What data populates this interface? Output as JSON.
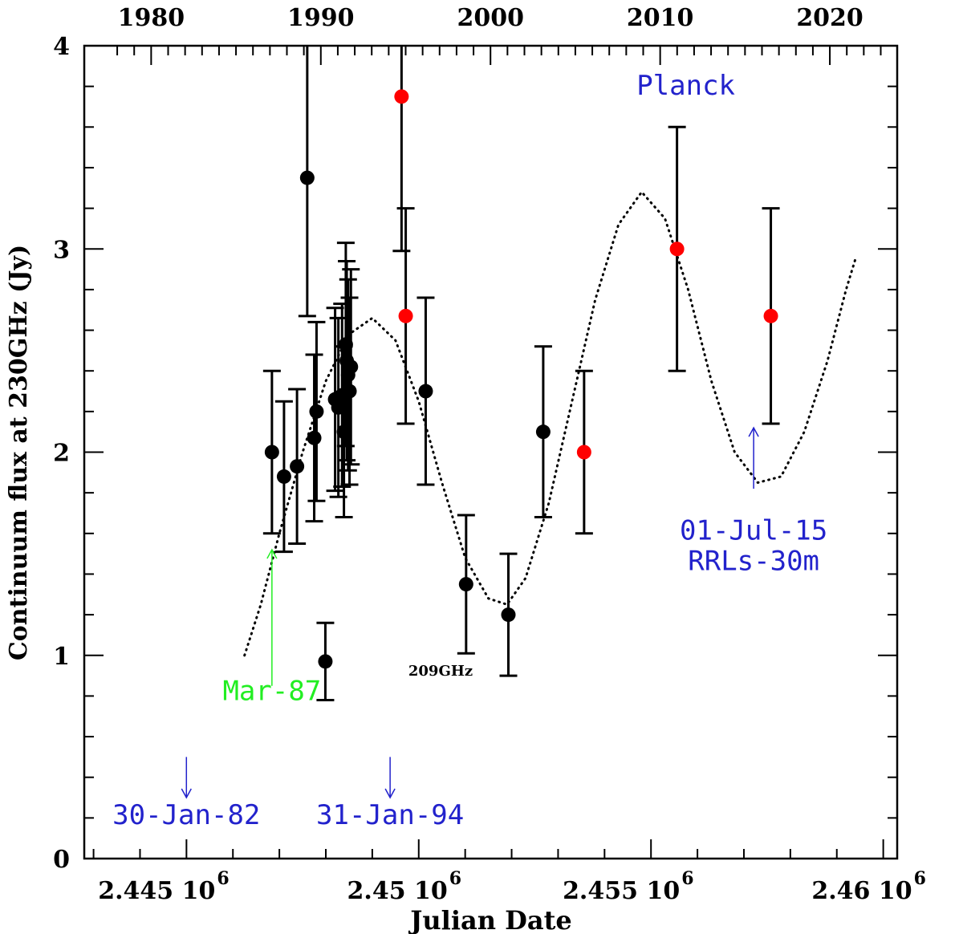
{
  "chart_data": {
    "type": "scatter",
    "xlabel": "Julian Date",
    "ylabel": "Continuum flux at 230GHz (Jy)",
    "xlim": [
      2442800,
      2460300
    ],
    "ylim": [
      0,
      4
    ],
    "top_axis_ticks": [
      {
        "year": "1980",
        "jd": 2444240
      },
      {
        "year": "1990",
        "jd": 2447893
      },
      {
        "year": "2000",
        "jd": 2451545
      },
      {
        "year": "2010",
        "jd": 2455198
      },
      {
        "year": "2020",
        "jd": 2458850
      }
    ],
    "bottom_axis_ticks": [
      {
        "label": "2.445 10",
        "exponent": "6",
        "jd": 2445000
      },
      {
        "label": "2.45 10",
        "exponent": "6",
        "jd": 2450000
      },
      {
        "label": "2.455 10",
        "exponent": "6",
        "jd": 2455000
      },
      {
        "label": "2.46 10",
        "exponent": "6",
        "jd": 2460000
      }
    ],
    "y_ticks": [
      "0",
      "1",
      "2",
      "3",
      "4"
    ],
    "series": [
      {
        "color": "#000000",
        "points": [
          {
            "x": 2446840,
            "y": 2.0,
            "err": 0.4
          },
          {
            "x": 2447100,
            "y": 1.88,
            "err": 0.37
          },
          {
            "x": 2447380,
            "y": 1.93,
            "err": 0.38
          },
          {
            "x": 2447600,
            "y": 3.35,
            "err": 0.68
          },
          {
            "x": 2447750,
            "y": 2.07,
            "err": 0.41
          },
          {
            "x": 2447800,
            "y": 2.2,
            "err": 0.44
          },
          {
            "x": 2447990,
            "y": 0.97,
            "err": 0.19
          },
          {
            "x": 2448200,
            "y": 2.26,
            "err": 0.45
          },
          {
            "x": 2448270,
            "y": 2.22,
            "err": 0.44
          },
          {
            "x": 2448350,
            "y": 2.28,
            "err": 0.45
          },
          {
            "x": 2448390,
            "y": 2.1,
            "err": 0.42
          },
          {
            "x": 2448430,
            "y": 2.53,
            "err": 0.5
          },
          {
            "x": 2448450,
            "y": 2.45,
            "err": 0.49
          },
          {
            "x": 2448480,
            "y": 2.38,
            "err": 0.47
          },
          {
            "x": 2448510,
            "y": 2.3,
            "err": 0.46
          },
          {
            "x": 2448540,
            "y": 2.42,
            "err": 0.48
          },
          {
            "x": 2450150,
            "y": 2.3,
            "err": 0.46
          },
          {
            "x": 2451020,
            "y": 1.35,
            "err": 0.34
          },
          {
            "x": 2451930,
            "y": 1.2,
            "err": 0.3
          },
          {
            "x": 2452680,
            "y": 2.1,
            "err": 0.42
          }
        ]
      },
      {
        "color": "#ff0000",
        "points": [
          {
            "x": 2449630,
            "y": 3.75,
            "err": 0.76
          },
          {
            "x": 2449720,
            "y": 2.67,
            "err": 0.53
          },
          {
            "x": 2453560,
            "y": 2.0,
            "err": 0.4
          },
          {
            "x": 2455560,
            "y": 3.0,
            "err": 0.6
          },
          {
            "x": 2457580,
            "y": 2.67,
            "err": 0.53
          }
        ]
      }
    ],
    "model_curve": {
      "style": "dotted",
      "color": "#000000",
      "points": [
        [
          2446250,
          1.0
        ],
        [
          2446600,
          1.25
        ],
        [
          2447000,
          1.6
        ],
        [
          2447500,
          2.0
        ],
        [
          2448000,
          2.35
        ],
        [
          2448500,
          2.58
        ],
        [
          2449000,
          2.66
        ],
        [
          2449500,
          2.55
        ],
        [
          2450000,
          2.25
        ],
        [
          2450500,
          1.85
        ],
        [
          2451000,
          1.48
        ],
        [
          2451500,
          1.28
        ],
        [
          2451900,
          1.25
        ],
        [
          2452300,
          1.38
        ],
        [
          2452800,
          1.75
        ],
        [
          2453300,
          2.25
        ],
        [
          2453800,
          2.75
        ],
        [
          2454300,
          3.12
        ],
        [
          2454800,
          3.28
        ],
        [
          2455300,
          3.15
        ],
        [
          2455800,
          2.8
        ],
        [
          2456300,
          2.35
        ],
        [
          2456800,
          2.0
        ],
        [
          2457300,
          1.85
        ],
        [
          2457800,
          1.88
        ],
        [
          2458300,
          2.1
        ],
        [
          2458800,
          2.45
        ],
        [
          2459200,
          2.8
        ],
        [
          2459400,
          2.95
        ]
      ]
    },
    "annotations": [
      {
        "text": "Planck",
        "color": "#2222cc",
        "x": 2455750,
        "y": 3.76
      },
      {
        "text": "209GHz",
        "color": "#000000",
        "x": 2450470,
        "y": 0.9,
        "small": true
      },
      {
        "text": "Mar-87",
        "color": "#22ee22",
        "x": 2446840,
        "y": 0.78,
        "arrow_from": 0.85,
        "arrow_to": 1.52
      },
      {
        "text": "01-Jul-15",
        "color": "#2222cc",
        "x": 2457210,
        "y": 1.57,
        "arrow_from": 1.82,
        "arrow_to": 2.12
      },
      {
        "text": "RRLs-30m",
        "color": "#2222cc",
        "x": 2457210,
        "y": 1.42
      },
      {
        "text": "30-Jan-82",
        "color": "#2222cc",
        "x": 2444999,
        "y": 0.17,
        "arrow_from": 0.5,
        "arrow_to": 0.3
      },
      {
        "text": "31-Jan-94",
        "color": "#2222cc",
        "x": 2449384,
        "y": 0.17,
        "arrow_from": 0.5,
        "arrow_to": 0.3
      }
    ]
  }
}
